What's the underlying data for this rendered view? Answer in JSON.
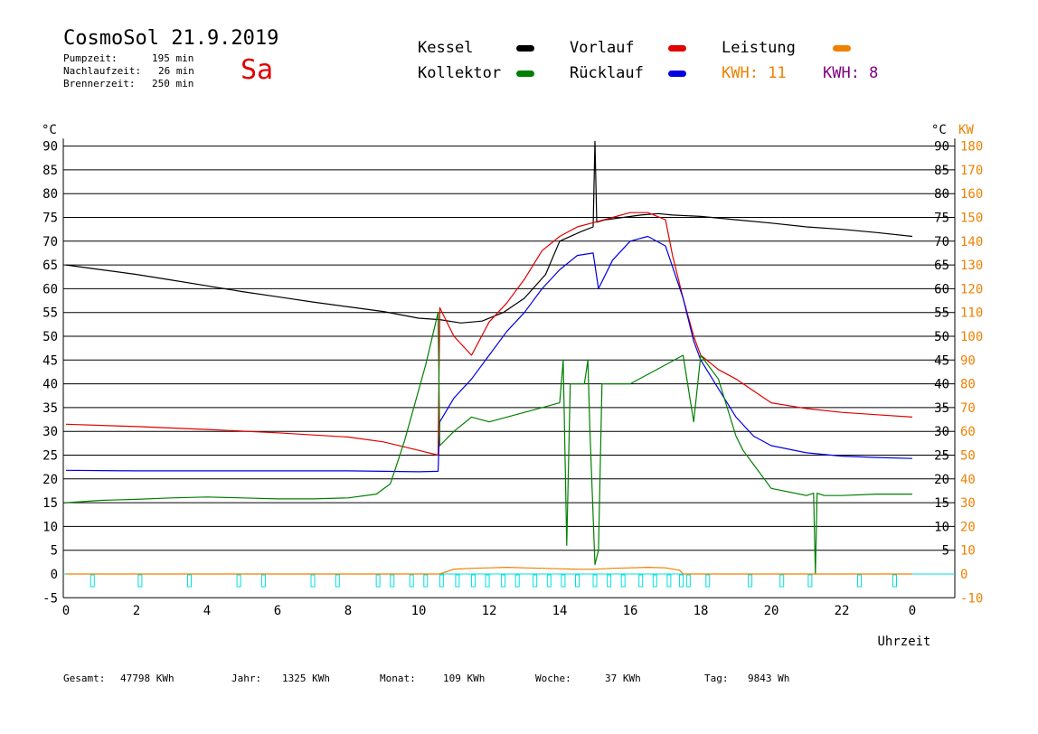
{
  "header": {
    "title": "CosmoSol 21.9.2019",
    "day": "Sa",
    "stats": [
      {
        "label": "Pumpzeit:",
        "value": "195 min"
      },
      {
        "label": "Nachlaufzeit:",
        "value": "26 min"
      },
      {
        "label": "Brennerzeit:",
        "value": "250 min"
      }
    ]
  },
  "legend": {
    "items": [
      {
        "label": "Kessel",
        "color": "#000000"
      },
      {
        "label": "Vorlauf",
        "color": "#e00000"
      },
      {
        "label": "Leistung",
        "color": "#f08000"
      },
      {
        "label": "Kollektor",
        "color": "#008000"
      },
      {
        "label": "Rücklauf",
        "color": "#0000e0"
      }
    ],
    "kwh_orange": "KWH: 11",
    "kwh_purple": "KWH: 8",
    "kwh_orange_color": "#f08000",
    "kwh_purple_color": "#800080"
  },
  "footer": [
    {
      "label": "Gesamt:",
      "value": "47798 KWh"
    },
    {
      "label": "Jahr:",
      "value": "1325 KWh"
    },
    {
      "label": "Monat:",
      "value": "109 KWh"
    },
    {
      "label": "Woche:",
      "value": "37 KWh"
    },
    {
      "label": "Tag:",
      "value": "9843 Wh"
    }
  ],
  "chart_data": {
    "type": "line",
    "xlabel": "Uhrzeit",
    "ylabel_left": "°C",
    "ylabel_right_1": "°C",
    "ylabel_right_2": "KW",
    "xlim": [
      0,
      24
    ],
    "ylim": [
      -5,
      95
    ],
    "grid": true,
    "x_ticks": [
      "0",
      "2",
      "4",
      "6",
      "8",
      "10",
      "12",
      "14",
      "16",
      "18",
      "20",
      "22",
      "0"
    ],
    "x_tick_values": [
      0,
      2,
      4,
      6,
      8,
      10,
      12,
      14,
      16,
      18,
      20,
      22,
      24
    ],
    "y_left_ticks": [
      -5,
      0,
      5,
      10,
      15,
      20,
      25,
      30,
      35,
      40,
      45,
      50,
      55,
      60,
      65,
      70,
      75,
      80,
      85,
      90
    ],
    "y_right_temp_ticks": [
      5,
      10,
      15,
      20,
      25,
      30,
      35,
      40,
      45,
      50,
      55,
      60,
      65,
      70,
      75,
      80,
      85,
      90
    ],
    "y_right_kw_ticks": [
      -10,
      0,
      10,
      20,
      30,
      40,
      50,
      60,
      70,
      80,
      90,
      100,
      110,
      120,
      130,
      140,
      150,
      160,
      170,
      180
    ],
    "series": [
      {
        "name": "Kessel",
        "color": "#000000",
        "x": [
          0,
          1,
          2,
          3,
          4,
          5,
          6,
          7,
          8,
          9,
          10,
          10.6,
          11.2,
          11.8,
          12.4,
          13,
          13.6,
          14,
          14.6,
          14.95,
          15.0,
          15.05,
          15.3,
          15.8,
          16.3,
          16.8,
          17.2,
          18,
          19,
          20,
          21,
          22,
          23,
          24
        ],
        "y": [
          65,
          64,
          63,
          61.8,
          60.6,
          59.4,
          58.3,
          57.2,
          56.2,
          55.2,
          53.8,
          53.5,
          52.8,
          53.2,
          55,
          58,
          63,
          70,
          72,
          73,
          91,
          74,
          74.5,
          75,
          75.5,
          75.8,
          75.5,
          75.2,
          74.5,
          73.8,
          73,
          72.5,
          71.8,
          71
        ]
      },
      {
        "name": "Vorlauf",
        "color": "#e00000",
        "x": [
          0,
          2,
          4,
          6,
          8,
          9,
          10,
          10.55,
          10.6,
          11,
          11.5,
          12,
          12.5,
          13,
          13.5,
          14,
          14.5,
          15,
          15.5,
          16,
          16.5,
          17,
          17.2,
          17.5,
          17.8,
          18,
          18.5,
          19,
          19.5,
          20,
          21,
          22,
          23,
          24
        ],
        "y": [
          31.5,
          31,
          30.4,
          29.7,
          28.8,
          27.8,
          26,
          25,
          56,
          50,
          46,
          53,
          57,
          62,
          68,
          71,
          73,
          74,
          75,
          76,
          76,
          74.5,
          67,
          58,
          50,
          46,
          43,
          41,
          38.5,
          36,
          34.8,
          34,
          33.5,
          33
        ]
      },
      {
        "name": "Rücklauf",
        "color": "#0000e0",
        "x": [
          0,
          2,
          4,
          6,
          8,
          9,
          10,
          10.55,
          10.6,
          11,
          11.5,
          12,
          12.5,
          13,
          13.5,
          14,
          14.5,
          14.95,
          15.1,
          15.5,
          16,
          16.5,
          17,
          17.5,
          17.8,
          18,
          18.5,
          19,
          19.5,
          20,
          21,
          22,
          23,
          24
        ],
        "y": [
          21.8,
          21.7,
          21.7,
          21.7,
          21.7,
          21.6,
          21.5,
          21.6,
          32,
          37,
          41,
          46,
          51,
          55,
          60,
          64,
          67,
          67.5,
          60,
          66,
          70,
          71,
          69,
          58,
          49,
          45,
          39,
          33,
          29,
          27,
          25.5,
          24.8,
          24.5,
          24.3
        ]
      },
      {
        "name": "Kollektor",
        "color": "#008000",
        "x": [
          0,
          1,
          2,
          3,
          4,
          5,
          6,
          7,
          8,
          8.8,
          9.2,
          9.6,
          10.2,
          10.55,
          10.6,
          11,
          11.5,
          12,
          12.5,
          13,
          13.5,
          14,
          14.1,
          14.2,
          14.3,
          14.7,
          14.8,
          14.85,
          15.0,
          15.1,
          15.2,
          15.6,
          16,
          16.5,
          17,
          17.5,
          17.8,
          18,
          18.5,
          19,
          19.2,
          19.5,
          20,
          21,
          21.2,
          21.25,
          21.3,
          21.5,
          22,
          23,
          24
        ],
        "y": [
          15,
          15.5,
          15.7,
          16,
          16.2,
          16,
          15.8,
          15.8,
          16,
          16.8,
          19,
          28,
          44,
          55,
          27,
          30,
          33,
          32,
          33,
          34,
          35,
          36,
          45,
          6,
          40,
          40,
          45,
          32,
          2,
          5,
          40,
          40,
          40,
          42,
          44,
          46,
          32,
          46,
          41,
          29,
          26,
          23,
          18,
          16.5,
          17,
          0,
          17,
          16.5,
          16.5,
          16.8,
          16.8
        ]
      },
      {
        "name": "Leistung",
        "color": "#f08000",
        "x": [
          0,
          10.6,
          11,
          11.5,
          12,
          12.5,
          13,
          13.5,
          14,
          14.5,
          15,
          15.5,
          16,
          16.5,
          17,
          17.4,
          17.5,
          24
        ],
        "y": [
          0,
          0,
          1,
          1.2,
          1.3,
          1.4,
          1.3,
          1.2,
          1.1,
          1.0,
          1.0,
          1.2,
          1.3,
          1.4,
          1.3,
          0.8,
          0,
          0
        ]
      }
    ],
    "pump_markers_hours": [
      0.75,
      2.1,
      3.5,
      4.9,
      5.6,
      7.0,
      7.7,
      8.85,
      9.25,
      9.8,
      10.2,
      10.65,
      11.1,
      11.55,
      11.95,
      12.4,
      12.8,
      13.3,
      13.7,
      14.1,
      14.5,
      15.0,
      15.4,
      15.8,
      16.3,
      16.7,
      17.1,
      17.45,
      17.65,
      18.2,
      19.4,
      20.3,
      21.1,
      22.5,
      23.5
    ],
    "pump_marker_color": "#00e0e0"
  }
}
